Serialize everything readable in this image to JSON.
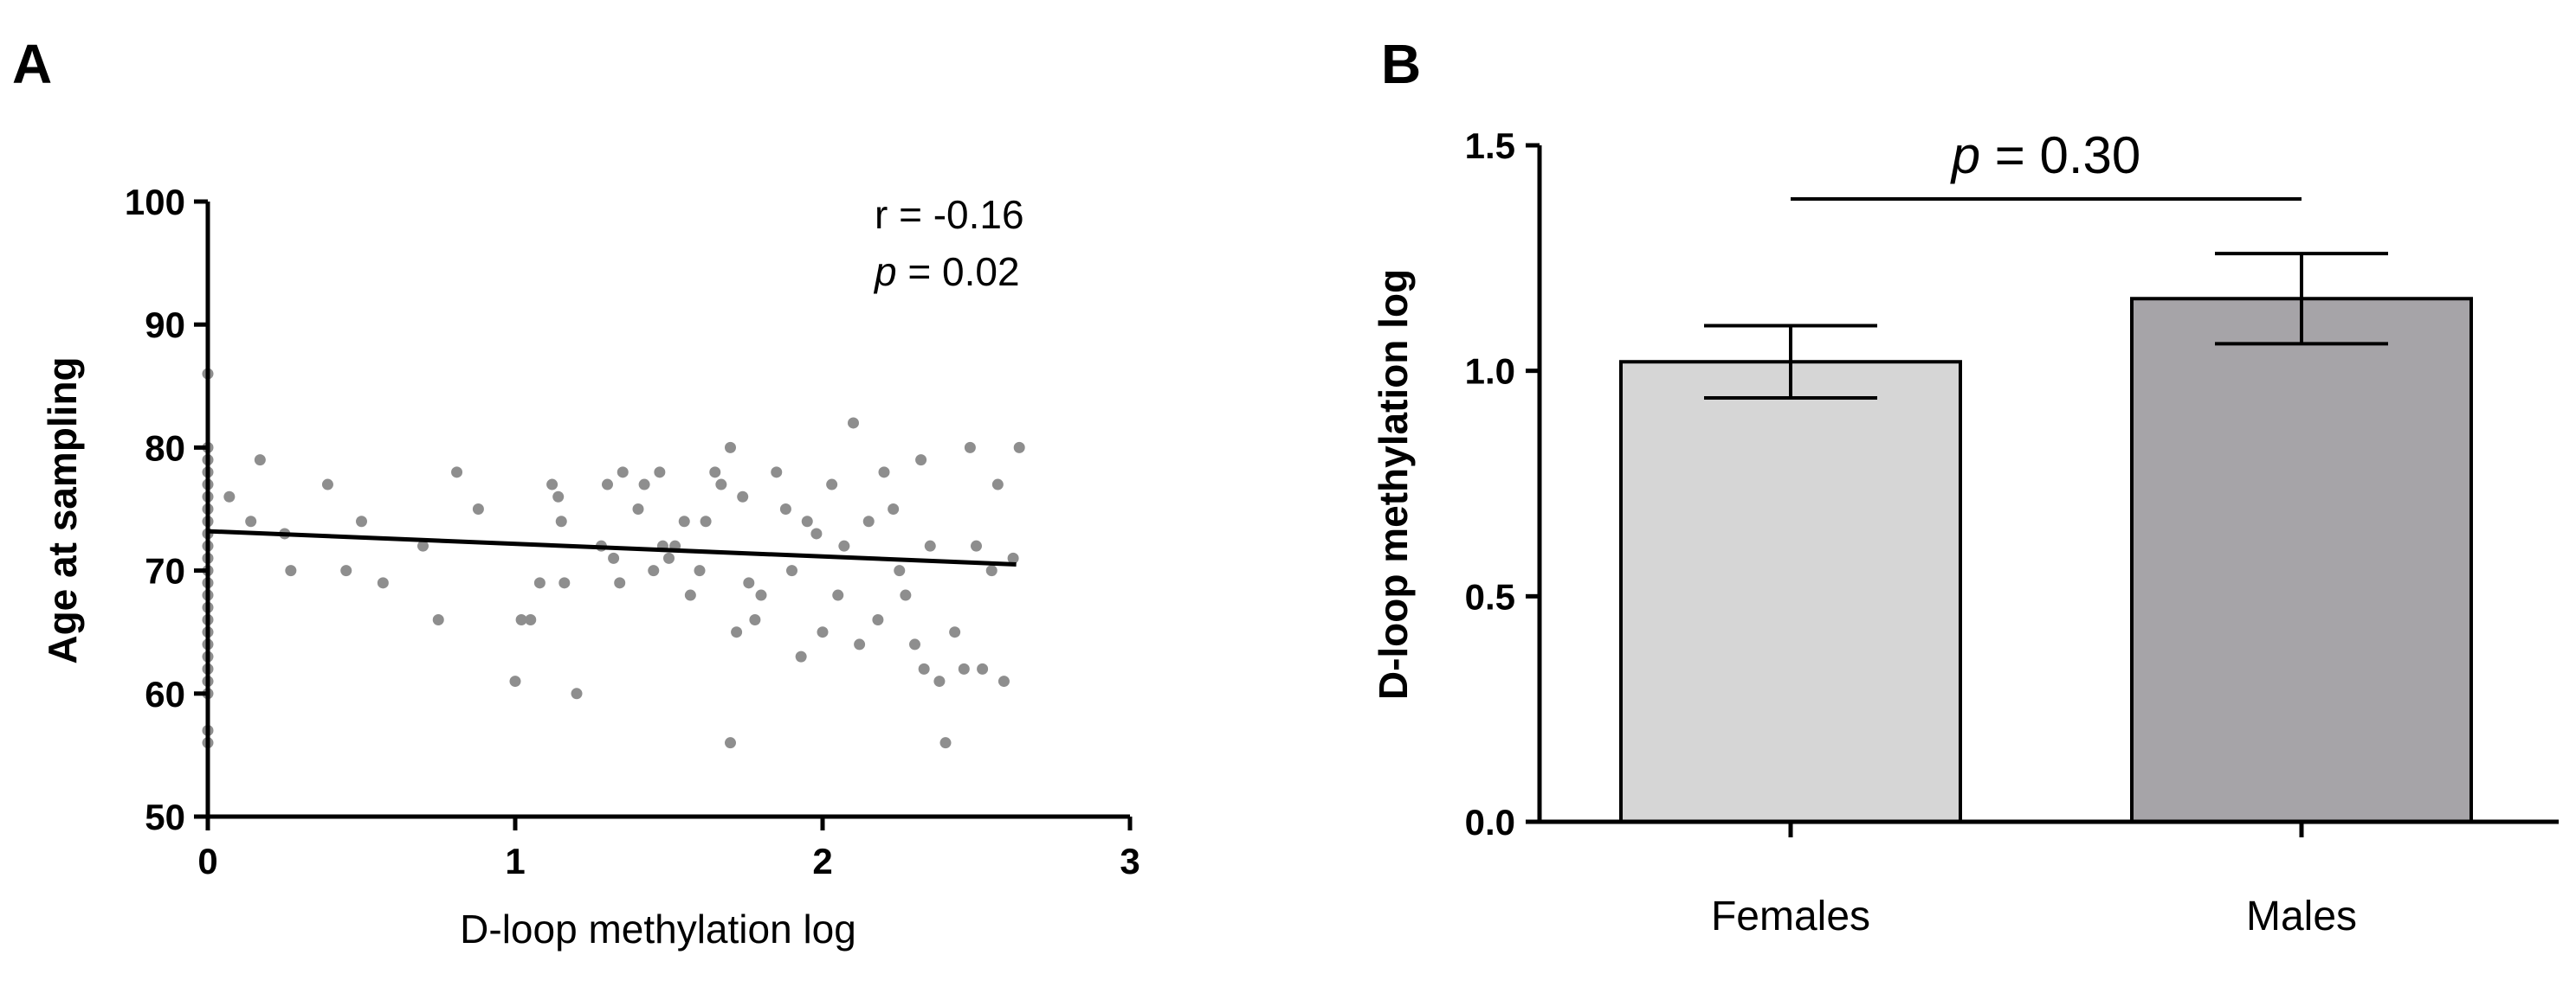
{
  "chart_data": [
    {
      "panel": "A",
      "type": "scatter",
      "xlabel": "D-loop methylation log",
      "ylabel": "Age at sampling",
      "xlim": [
        0,
        3
      ],
      "ylim": [
        50,
        100
      ],
      "xticks": [
        0,
        1,
        2,
        3
      ],
      "yticks": [
        50,
        60,
        70,
        80,
        90,
        100
      ],
      "annotation": {
        "r_label": "r = -0.16",
        "p_symbol": "p",
        "p_rest": " = 0.02"
      },
      "regression_line": {
        "x": [
          0,
          2.63
        ],
        "y": [
          73.2,
          70.5
        ]
      },
      "points": [
        [
          0,
          86
        ],
        [
          0,
          80
        ],
        [
          0,
          79
        ],
        [
          0,
          78
        ],
        [
          0,
          77
        ],
        [
          0,
          76
        ],
        [
          0,
          75
        ],
        [
          0,
          74
        ],
        [
          0,
          73
        ],
        [
          0,
          72
        ],
        [
          0,
          71
        ],
        [
          0,
          70
        ],
        [
          0,
          69
        ],
        [
          0,
          68
        ],
        [
          0,
          67
        ],
        [
          0,
          66
        ],
        [
          0,
          65
        ],
        [
          0,
          64
        ],
        [
          0,
          63
        ],
        [
          0,
          62
        ],
        [
          0,
          61
        ],
        [
          0,
          60
        ],
        [
          0,
          57
        ],
        [
          0,
          56
        ],
        [
          0.07,
          76
        ],
        [
          0.14,
          74
        ],
        [
          0.17,
          79
        ],
        [
          0.25,
          73
        ],
        [
          0.27,
          70
        ],
        [
          0.39,
          77
        ],
        [
          0.45,
          70
        ],
        [
          0.5,
          74
        ],
        [
          0.57,
          69
        ],
        [
          0.7,
          72
        ],
        [
          0.75,
          66
        ],
        [
          0.81,
          78
        ],
        [
          0.88,
          75
        ],
        [
          1.0,
          61
        ],
        [
          1.02,
          66
        ],
        [
          1.05,
          66
        ],
        [
          1.08,
          69
        ],
        [
          1.12,
          77
        ],
        [
          1.14,
          76
        ],
        [
          1.15,
          74
        ],
        [
          1.16,
          69
        ],
        [
          1.2,
          60
        ],
        [
          1.28,
          72
        ],
        [
          1.3,
          77
        ],
        [
          1.32,
          71
        ],
        [
          1.34,
          69
        ],
        [
          1.35,
          78
        ],
        [
          1.4,
          75
        ],
        [
          1.42,
          77
        ],
        [
          1.45,
          70
        ],
        [
          1.47,
          78
        ],
        [
          1.48,
          72
        ],
        [
          1.5,
          71
        ],
        [
          1.52,
          72
        ],
        [
          1.55,
          74
        ],
        [
          1.57,
          68
        ],
        [
          1.6,
          70
        ],
        [
          1.62,
          74
        ],
        [
          1.65,
          78
        ],
        [
          1.67,
          77
        ],
        [
          1.7,
          80
        ],
        [
          1.72,
          65
        ],
        [
          1.74,
          76
        ],
        [
          1.7,
          56
        ],
        [
          1.76,
          69
        ],
        [
          1.78,
          66
        ],
        [
          1.8,
          68
        ],
        [
          1.85,
          78
        ],
        [
          1.88,
          75
        ],
        [
          1.9,
          70
        ],
        [
          1.93,
          63
        ],
        [
          1.95,
          74
        ],
        [
          1.98,
          73
        ],
        [
          2.0,
          65
        ],
        [
          2.03,
          77
        ],
        [
          2.05,
          68
        ],
        [
          2.07,
          72
        ],
        [
          2.1,
          82
        ],
        [
          2.12,
          64
        ],
        [
          2.15,
          74
        ],
        [
          2.18,
          66
        ],
        [
          2.2,
          78
        ],
        [
          2.23,
          75
        ],
        [
          2.25,
          70
        ],
        [
          2.27,
          68
        ],
        [
          2.3,
          64
        ],
        [
          2.32,
          79
        ],
        [
          2.33,
          62
        ],
        [
          2.35,
          72
        ],
        [
          2.38,
          61
        ],
        [
          2.4,
          56
        ],
        [
          2.43,
          65
        ],
        [
          2.46,
          62
        ],
        [
          2.48,
          80
        ],
        [
          2.5,
          72
        ],
        [
          2.52,
          62
        ],
        [
          2.55,
          70
        ],
        [
          2.57,
          77
        ],
        [
          2.59,
          61
        ],
        [
          2.62,
          71
        ],
        [
          2.64,
          80
        ]
      ]
    },
    {
      "panel": "B",
      "type": "bar",
      "ylabel": "D-loop methylation log",
      "ylim": [
        0,
        1.5
      ],
      "yticks": [
        "0.0",
        "0.5",
        "1.0",
        "1.5"
      ],
      "categories": [
        "Females",
        "Males"
      ],
      "values": [
        1.02,
        1.16
      ],
      "errors": [
        0.08,
        0.1
      ],
      "colors": [
        "#d6d6d6",
        "#a6a4a8"
      ],
      "annotation": {
        "p_symbol": "p",
        "p_rest": " = 0.30"
      }
    }
  ]
}
